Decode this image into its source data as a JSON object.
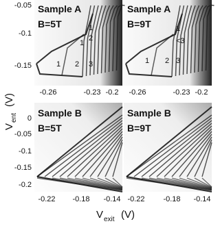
{
  "panels": [
    {
      "sample": "Sample A",
      "field": "B=5T",
      "annotations": [
        "1",
        "2",
        "3",
        "1",
        "2",
        "1"
      ]
    },
    {
      "sample": "Sample A",
      "field": "B=9T",
      "annotations": [
        "1",
        "2",
        "3",
        "1",
        "<3"
      ]
    },
    {
      "sample": "Sample B",
      "field": "B=5T",
      "annotations": []
    },
    {
      "sample": "Sample B",
      "field": "B=9T",
      "annotations": []
    }
  ],
  "y_axis": {
    "symbol": "V",
    "subscript": "ent",
    "unit": "(V)",
    "top_ticks": [
      "-0.05",
      "-0.1",
      "-0.15"
    ],
    "bottom_ticks": [
      "0",
      "-0.05",
      "-0.1",
      "-0.15",
      "-0.2"
    ]
  },
  "x_axis": {
    "symbol": "V",
    "subscript": "exit",
    "unit": "(V)",
    "top_ticks": [
      "-0.26",
      "-0.23",
      "-0.2"
    ],
    "bottom_ticks": [
      "-0.22",
      "-0.18",
      "-0.14"
    ]
  }
}
